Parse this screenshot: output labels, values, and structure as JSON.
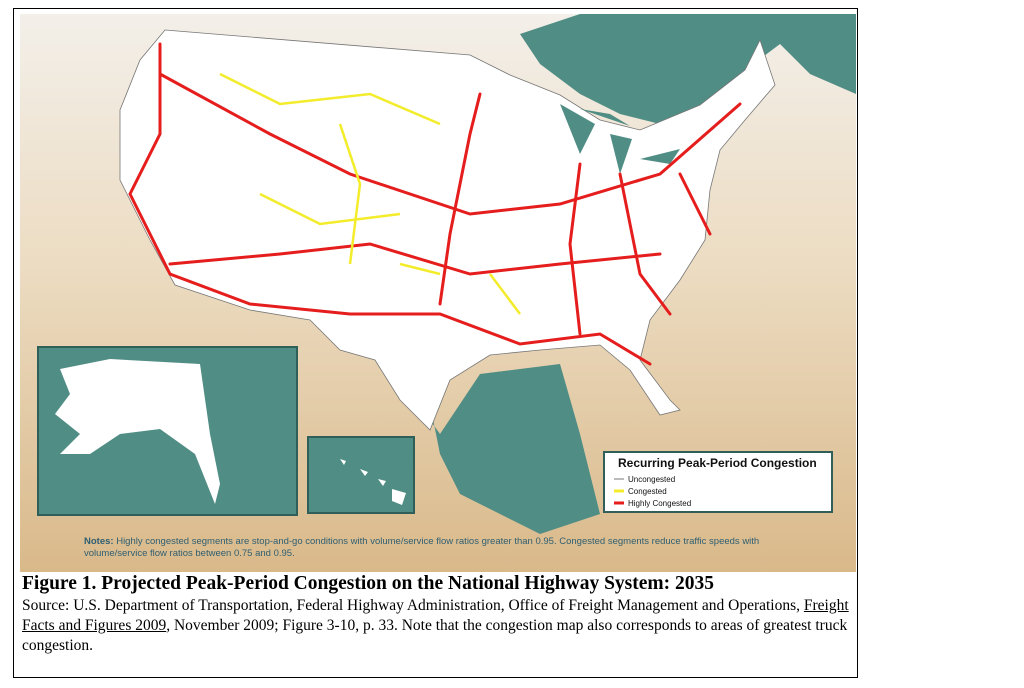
{
  "map": {
    "legend": {
      "title": "Recurring Peak-Period Congestion",
      "items": [
        "Uncongested",
        "Congested",
        "Highly Congested"
      ]
    },
    "notes_label": "Notes:",
    "notes": "Highly congested segments are stop-and-go conditions with volume/service flow ratios greater than 0.95. Congested segments reduce traffic speeds with volume/service flow ratios between 0.75 and 0.95."
  },
  "caption": {
    "title": "Figure 1. Projected Peak-Period Congestion on the National Highway System: 2035",
    "source_before": "Source:  U.S. Department of Transportation, Federal Highway Administration, Office of Freight Management and Operations, ",
    "source_link": "Freight Facts and Figures 2009",
    "source_after": ", November 2009; Figure 3-10, p. 33.  Note that the congestion map also corresponds to areas of greatest truck congestion."
  }
}
